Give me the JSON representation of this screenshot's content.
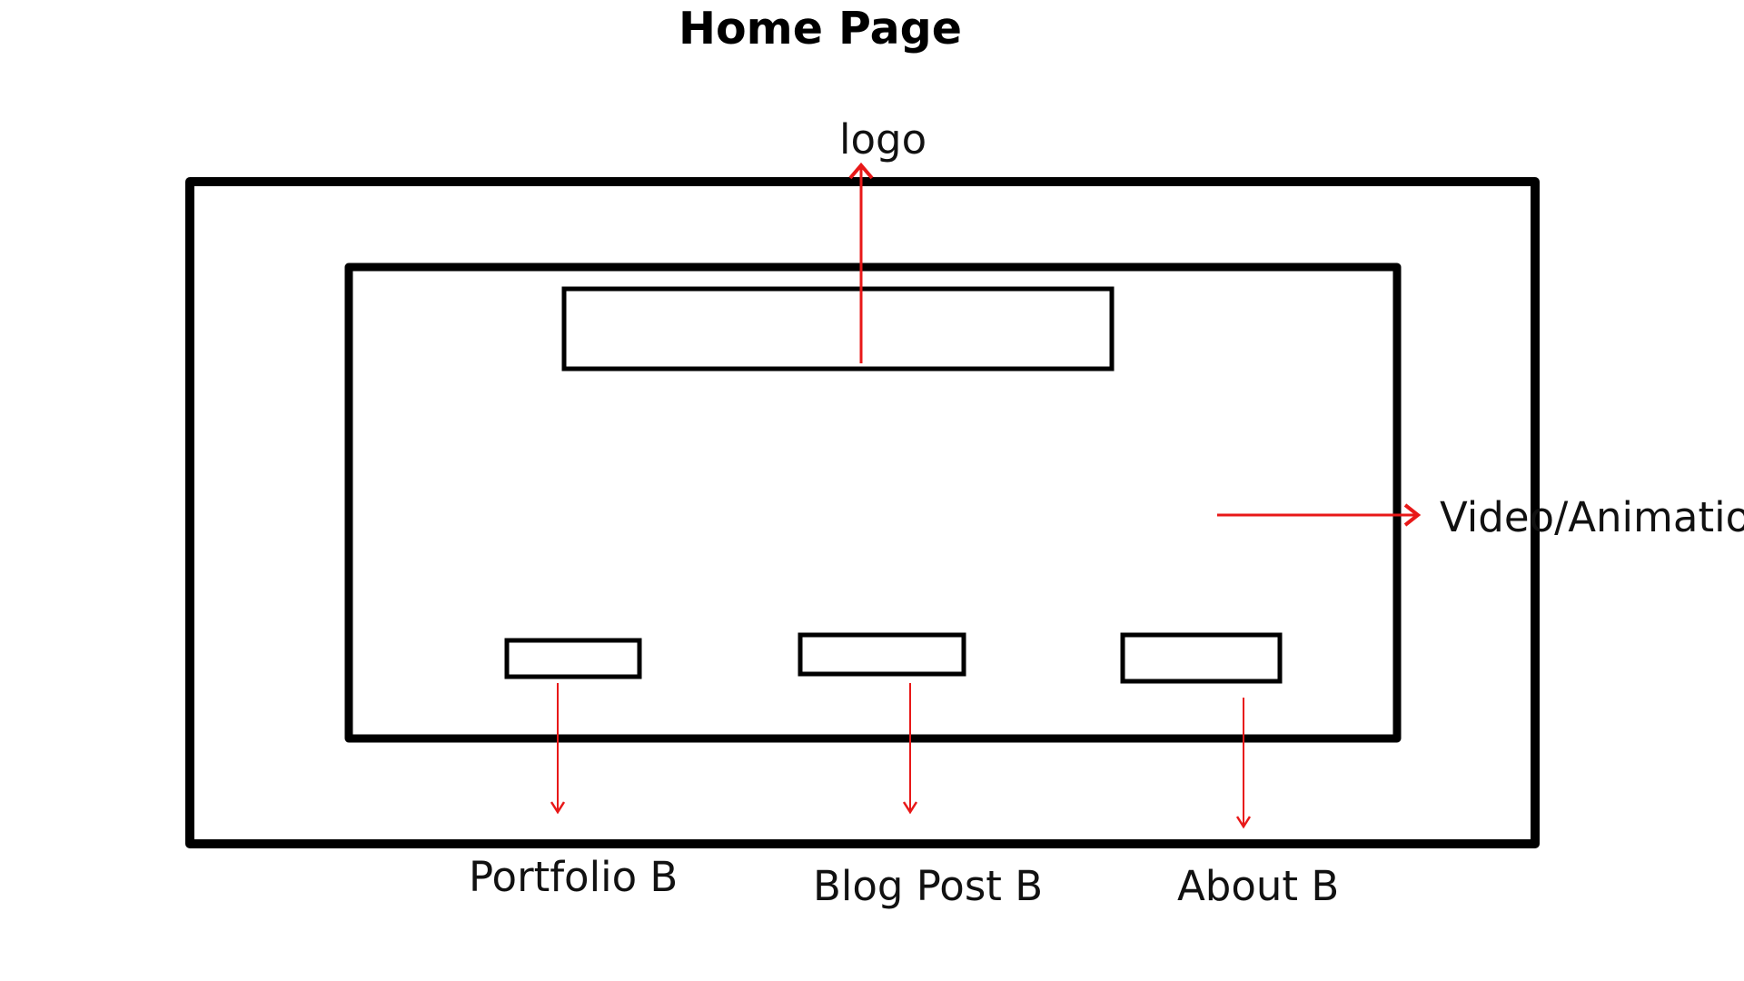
{
  "diagram": {
    "title": "Home Page",
    "labels": {
      "logo": "logo",
      "video": "Video/Animation",
      "portfolio": "Portfolio B",
      "blog_post": "Blog Post B",
      "about": "About B"
    },
    "colors": {
      "frame": "#000000",
      "arrow": "#e81818",
      "text": "#111111",
      "background": "#ffffff"
    }
  }
}
